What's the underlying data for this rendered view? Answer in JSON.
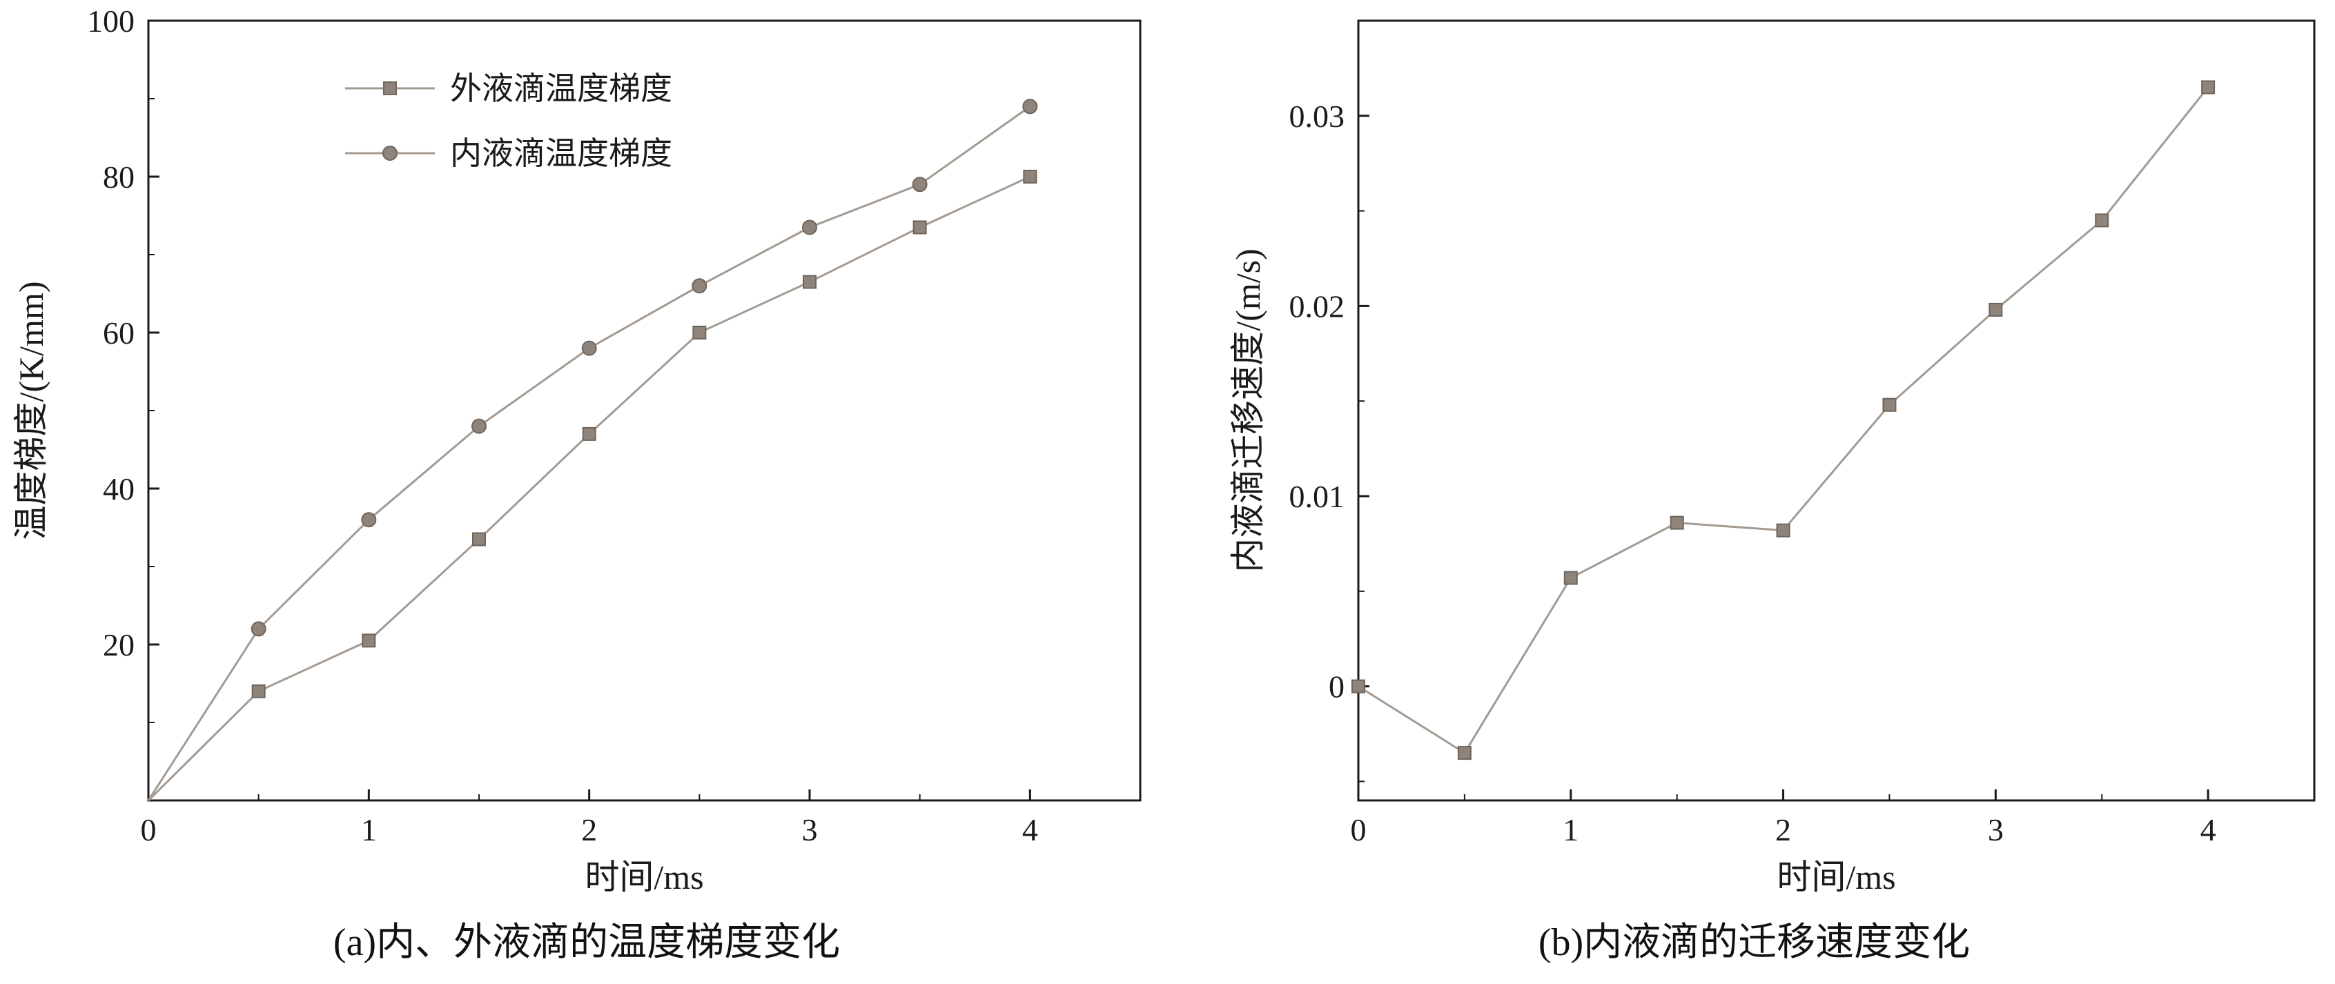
{
  "page": {
    "background": "#ffffff"
  },
  "colors": {
    "axis": "#1a1a1a",
    "text": "#1a1a1a",
    "line": "#a39a92",
    "marker_fill": "#8f847b",
    "marker_edge": "#6e655d"
  },
  "chart_data": [
    {
      "type": "line",
      "caption": "(a)内、外液滴的温度梯度变化",
      "xlabel": "时间/ms",
      "ylabel": "温度梯度/(K/mm)",
      "xlim": [
        0,
        4.5
      ],
      "ylim": [
        0,
        100
      ],
      "x": [
        0,
        0.5,
        1,
        1.5,
        2,
        2.5,
        3,
        3.5,
        4
      ],
      "series": [
        {
          "name": "外液滴温度梯度",
          "marker": "square",
          "marker_from": 1,
          "values": [
            0,
            14,
            20.5,
            33.5,
            47,
            60,
            66.5,
            73.5,
            80
          ]
        },
        {
          "name": "内液滴温度梯度",
          "marker": "circle",
          "marker_from": 1,
          "values": [
            0,
            22,
            36,
            48,
            58,
            66,
            73.5,
            79,
            89
          ]
        }
      ],
      "xtick_values": [
        0,
        1,
        2,
        3,
        4
      ],
      "xtick_labels": [
        "0",
        "1",
        "2",
        "3",
        "4"
      ],
      "ytick_values": [
        20,
        40,
        60,
        80,
        100
      ],
      "ytick_labels": [
        "20",
        "40",
        "60",
        "80",
        "100"
      ],
      "xminor": [
        0.5,
        1.5,
        2.5,
        3.5
      ],
      "yminor": [
        10,
        30,
        50,
        70,
        90
      ],
      "legend": true,
      "legend_position": "inside-top-left",
      "grid": false
    },
    {
      "type": "line",
      "caption": "(b)内液滴的迁移速度变化",
      "xlabel": "时间/ms",
      "ylabel": "内液滴迁移速度/(m/s)",
      "xlim": [
        0,
        4.5
      ],
      "ylim": [
        -0.006,
        0.035
      ],
      "x": [
        0,
        0.5,
        1,
        1.5,
        2,
        2.5,
        3,
        3.5,
        4
      ],
      "series": [
        {
          "name": "内液滴迁移速度",
          "marker": "square",
          "marker_from": 0,
          "values": [
            0,
            -0.0035,
            0.0057,
            0.0086,
            0.0082,
            0.0148,
            0.0198,
            0.0245,
            0.0315
          ]
        }
      ],
      "xtick_values": [
        0,
        1,
        2,
        3,
        4
      ],
      "xtick_labels": [
        "0",
        "1",
        "2",
        "3",
        "4"
      ],
      "ytick_values": [
        0,
        0.01,
        0.02,
        0.03
      ],
      "ytick_labels": [
        "0",
        "0.01",
        "0.02",
        "0.03"
      ],
      "xminor": [
        0.5,
        1.5,
        2.5,
        3.5
      ],
      "yminor": [
        -0.005,
        0.005,
        0.015,
        0.025,
        0.035
      ],
      "legend": false,
      "grid": false
    }
  ]
}
